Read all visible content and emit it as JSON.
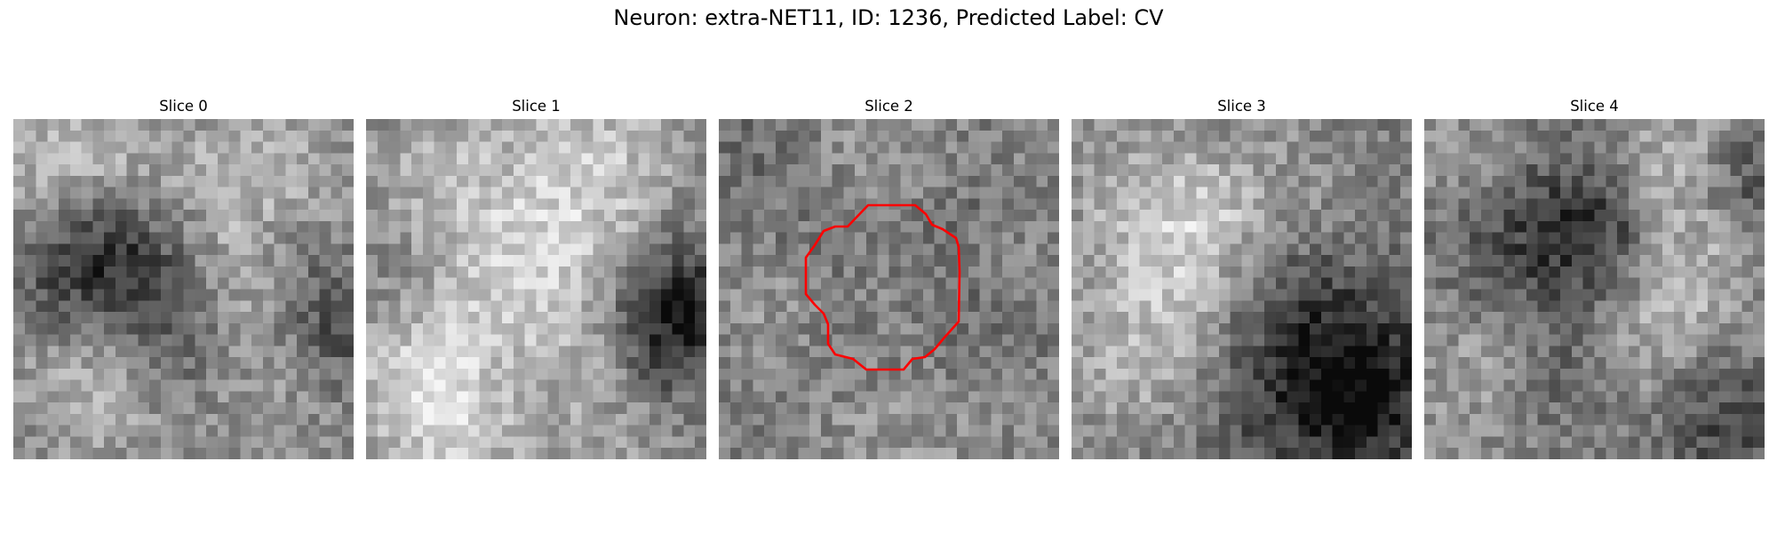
{
  "title": "Neuron: extra-NET11, ID: 1236, Predicted Label: CV",
  "panels": [
    {
      "label": "Slice 0"
    },
    {
      "label": "Slice 1"
    },
    {
      "label": "Slice 2"
    },
    {
      "label": "Slice 3"
    },
    {
      "label": "Slice 4"
    }
  ],
  "colors": {
    "contour": "#ff0000",
    "background": "#ffffff"
  }
}
